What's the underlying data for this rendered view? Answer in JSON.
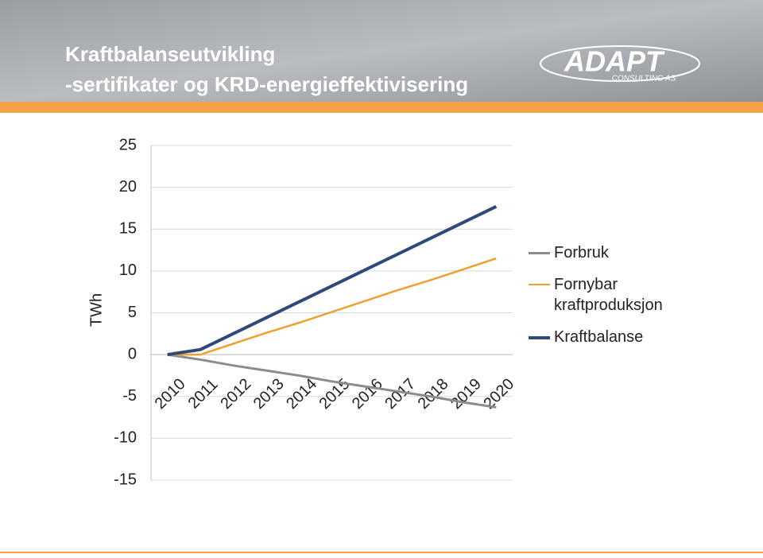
{
  "header": {
    "title_lines": [
      "Kraftbalanseutvikling",
      "-sertifikater og KRD-energieffektivisering"
    ]
  },
  "logo": {
    "name": "ADAPT",
    "tagline": "CONSULTING AS"
  },
  "chart_data": {
    "type": "line",
    "y_label": "TWh",
    "categories": [
      "2010",
      "2011",
      "2012",
      "2013",
      "2014",
      "2015",
      "2016",
      "2017",
      "2018",
      "2019",
      "2020"
    ],
    "series": [
      {
        "name": "Forbruk",
        "color": "#8c8c8c",
        "values": [
          0,
          -0.6,
          -1.3,
          -1.9,
          -2.5,
          -3.2,
          -3.8,
          -4.4,
          -5,
          -5.7,
          -6.3
        ]
      },
      {
        "name": "Fornybar kraftproduksjon",
        "color": "#f0a030",
        "values": [
          0,
          0,
          1.3,
          2.6,
          3.8,
          5.1,
          6.4,
          7.7,
          8.9,
          10.2,
          11.5
        ]
      },
      {
        "name": "Kraftbalanse",
        "color": "#2f4a7a",
        "values": [
          0,
          0.6,
          2.5,
          4.4,
          6.3,
          8.2,
          10.1,
          12,
          13.9,
          15.8,
          17.7
        ]
      }
    ],
    "ylim": [
      -15,
      25
    ],
    "yticks": [
      -15,
      -10,
      -5,
      0,
      5,
      10,
      15,
      20,
      25
    ],
    "grid": true,
    "legend": "right"
  }
}
